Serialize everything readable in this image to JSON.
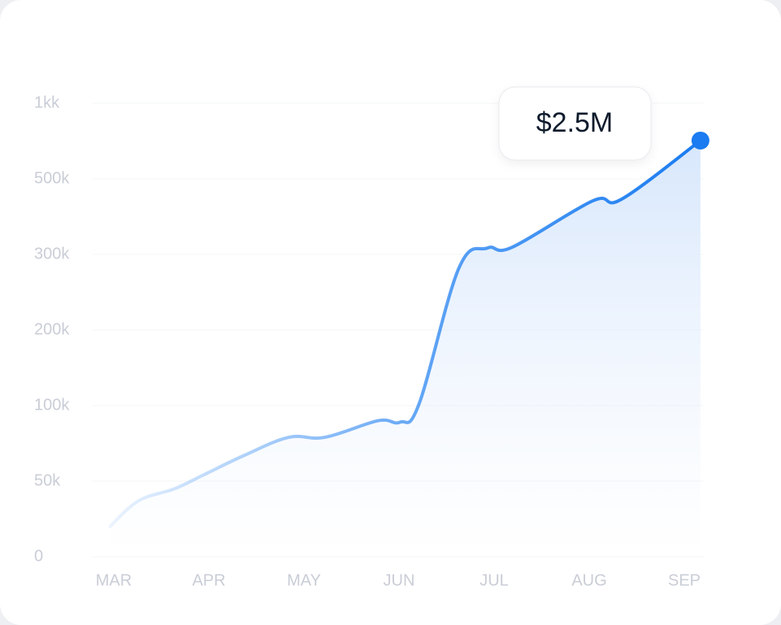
{
  "chart_data": {
    "type": "area-line",
    "annotation": "$2.5M",
    "color": "#1a7cf0",
    "x": [
      -0.04,
      0.26,
      0.64,
      0.94,
      1.37,
      1.84,
      2.22,
      2.78,
      3.01,
      3.21,
      3.63,
      3.93,
      4.19,
      5.04,
      5.34,
      6.17
    ],
    "values": [
      20000,
      37000,
      45000,
      54000,
      67000,
      79000,
      79000,
      90000,
      89000,
      102000,
      282000,
      317000,
      319000,
      442000,
      446000,
      753000
    ],
    "xlim": [
      -0.22,
      6.2
    ],
    "xticks": [
      {
        "value": 0,
        "label": "MAR"
      },
      {
        "value": 1,
        "label": "APR"
      },
      {
        "value": 2,
        "label": "MAY"
      },
      {
        "value": 3,
        "label": "JUN"
      },
      {
        "value": 4,
        "label": "JUL"
      },
      {
        "value": 5,
        "label": "AUG"
      },
      {
        "value": 6,
        "label": "SEP"
      }
    ],
    "ylim": [
      0,
      1000000
    ],
    "yticks": [
      0,
      {
        "value": 50000,
        "label": "50k"
      },
      {
        "value": 100000,
        "label": "100k"
      },
      {
        "value": 200000,
        "label": "200k"
      },
      {
        "value": 300000,
        "label": "300k"
      },
      {
        "value": 500000,
        "label": "500k"
      },
      {
        "value": 1000000,
        "label": "1kk"
      }
    ],
    "grid": true
  }
}
